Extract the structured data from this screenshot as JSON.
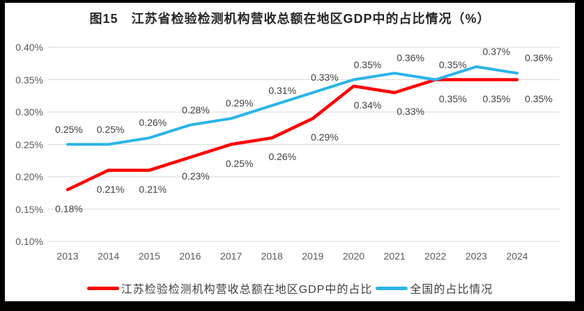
{
  "title": "图15　江苏省检验检测机构营收总额在地区GDP中的占比情况（%）",
  "chart_data": {
    "type": "line",
    "title": "图15　江苏省检验检测机构营收总额在地区GDP中的占比情况（%）",
    "categories": [
      "2013",
      "2014",
      "2015",
      "2016",
      "2017",
      "2018",
      "2019",
      "2020",
      "2021",
      "2022",
      "2023",
      "2024"
    ],
    "series": [
      {
        "name": "江苏检验检测机构营收总额在地区GDP中的占比",
        "color": "#FF0000",
        "values": [
          0.18,
          0.21,
          0.21,
          0.23,
          0.25,
          0.26,
          0.29,
          0.34,
          0.33,
          0.35,
          0.35,
          0.35
        ],
        "labels": [
          "0.18%",
          "0.21%",
          "0.21%",
          "0.23%",
          "0.25%",
          "0.26%",
          "0.29%",
          "0.34%",
          "0.33%",
          "0.35%",
          "0.35%",
          "0.35%"
        ],
        "label_position": "below"
      },
      {
        "name": "全国的占比情况",
        "color": "#2AB4EA",
        "values": [
          0.25,
          0.25,
          0.26,
          0.28,
          0.29,
          0.31,
          0.33,
          0.35,
          0.36,
          0.35,
          0.37,
          0.36
        ],
        "labels": [
          "0.25%",
          "0.25%",
          "0.26%",
          "0.28%",
          "0.29%",
          "0.31%",
          "0.33%",
          "0.35%",
          "0.36%",
          "0.35%",
          "0.37%",
          "0.36%"
        ],
        "label_position": "above"
      }
    ],
    "xlabel": "",
    "ylabel": "",
    "ylim": [
      0.1,
      0.4
    ],
    "y_ticks": [
      "0.40%",
      "0.35%",
      "0.30%",
      "0.25%",
      "0.20%",
      "0.15%",
      "0.10%"
    ],
    "grid": true,
    "legend_position": "bottom",
    "colors": {
      "gridline": "#D9D9D9",
      "axis_text": "#595959",
      "data_label_text": "#404040",
      "title_text": "#262626"
    }
  }
}
